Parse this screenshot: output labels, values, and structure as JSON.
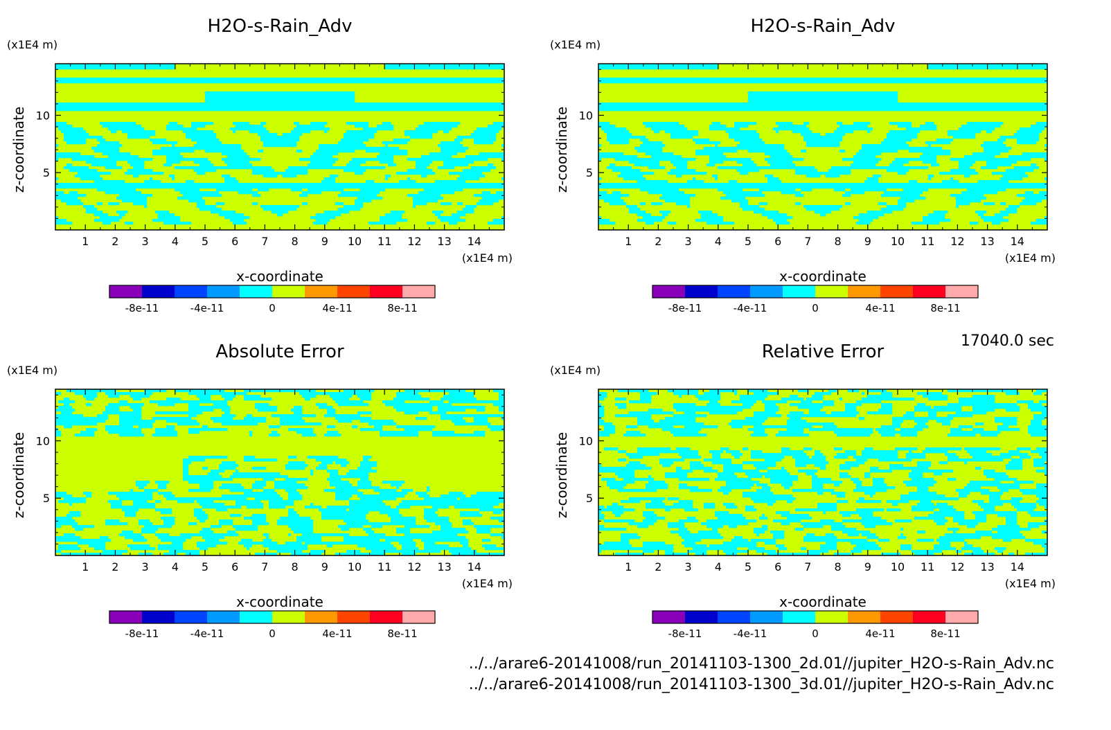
{
  "time_label": "17040.0 sec",
  "files": [
    "../../arare6-20141008/run_20141103-1300_2d.01//jupiter_H2O-s-Rain_Adv.nc",
    "../../arare6-20141008/run_20141103-1300_3d.01//jupiter_H2O-s-Rain_Adv.nc"
  ],
  "colors": {
    "cyan": "#00ffff",
    "yellow_green": "#ccff00",
    "colorbar": [
      "#8a00b8",
      "#0000cc",
      "#0044ff",
      "#0099ff",
      "#00ffff",
      "#ccff00",
      "#ff9900",
      "#ff4400",
      "#ff0022",
      "#ffaaaa"
    ]
  },
  "chart_data": [
    {
      "type": "heatmap",
      "title": "H2O-s-Rain_Adv",
      "xlabel": "x-coordinate",
      "ylabel": "z-coordinate",
      "x_unit": "(x1E4 m)",
      "y_unit": "(x1E4 m)",
      "xlim": [
        0,
        15
      ],
      "ylim": [
        0,
        14.5
      ],
      "x_ticks": [
        1,
        2,
        3,
        4,
        5,
        6,
        7,
        8,
        9,
        10,
        11,
        12,
        13,
        14
      ],
      "y_ticks": [
        5,
        10
      ],
      "colorbar": {
        "levels": [
          -1e-10,
          -8e-11,
          -6e-11,
          -4e-11,
          -2e-11,
          0,
          2e-11,
          4e-11,
          6e-11,
          8e-11,
          1e-10
        ],
        "tick_labels": [
          "-8e-11",
          "-4e-11",
          "0",
          "4e-11",
          "8e-11"
        ]
      },
      "pattern": "model"
    },
    {
      "type": "heatmap",
      "title": "H2O-s-Rain_Adv",
      "xlabel": "x-coordinate",
      "ylabel": "z-coordinate",
      "x_unit": "(x1E4 m)",
      "y_unit": "(x1E4 m)",
      "xlim": [
        0,
        15
      ],
      "ylim": [
        0,
        14.5
      ],
      "x_ticks": [
        1,
        2,
        3,
        4,
        5,
        6,
        7,
        8,
        9,
        10,
        11,
        12,
        13,
        14
      ],
      "y_ticks": [
        5,
        10
      ],
      "colorbar": {
        "levels": [
          -1e-10,
          -8e-11,
          -6e-11,
          -4e-11,
          -2e-11,
          0,
          2e-11,
          4e-11,
          6e-11,
          8e-11,
          1e-10
        ],
        "tick_labels": [
          "-8e-11",
          "-4e-11",
          "0",
          "4e-11",
          "8e-11"
        ]
      },
      "pattern": "model"
    },
    {
      "type": "heatmap",
      "title": "Absolute Error",
      "xlabel": "x-coordinate",
      "ylabel": "z-coordinate",
      "x_unit": "(x1E4 m)",
      "y_unit": "(x1E4 m)",
      "xlim": [
        0,
        15
      ],
      "ylim": [
        0,
        14.5
      ],
      "x_ticks": [
        1,
        2,
        3,
        4,
        5,
        6,
        7,
        8,
        9,
        10,
        11,
        12,
        13,
        14
      ],
      "y_ticks": [
        5,
        10
      ],
      "colorbar": {
        "levels": [
          -1e-10,
          -8e-11,
          -6e-11,
          -4e-11,
          -2e-11,
          0,
          2e-11,
          4e-11,
          6e-11,
          8e-11,
          1e-10
        ],
        "tick_labels": [
          "-8e-11",
          "-4e-11",
          "0",
          "4e-11",
          "8e-11"
        ]
      },
      "pattern": "abs_error"
    },
    {
      "type": "heatmap",
      "title": "Relative Error",
      "xlabel": "x-coordinate",
      "ylabel": "z-coordinate",
      "x_unit": "(x1E4 m)",
      "y_unit": "(x1E4 m)",
      "xlim": [
        0,
        15
      ],
      "ylim": [
        0,
        14.5
      ],
      "x_ticks": [
        1,
        2,
        3,
        4,
        5,
        6,
        7,
        8,
        9,
        10,
        11,
        12,
        13,
        14
      ],
      "y_ticks": [
        5,
        10
      ],
      "colorbar": {
        "levels": [
          -1e-10,
          -8e-11,
          -6e-11,
          -4e-11,
          -2e-11,
          0,
          2e-11,
          4e-11,
          6e-11,
          8e-11,
          1e-10
        ],
        "tick_labels": [
          "-8e-11",
          "-4e-11",
          "0",
          "4e-11",
          "8e-11"
        ]
      },
      "pattern": "rel_error"
    }
  ]
}
